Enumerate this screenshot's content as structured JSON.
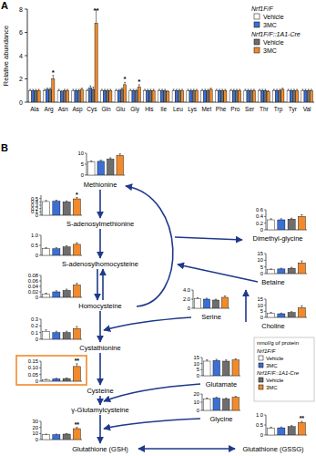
{
  "panel_labels": [
    "A",
    "B"
  ],
  "nodes": [
    {
      "label": "γ-Glutamylcysteine"
    }
  ],
  "legend_b": {
    "title": "nmol/g of protein",
    "groups": [
      {
        "label": "Nrf1F/F",
        "series": [
          0,
          1
        ]
      },
      {
        "label": "Nrf1F/F::1A1-Cre",
        "series": [
          2,
          3
        ]
      }
    ]
  },
  "chart_data": [
    {
      "type": "bar",
      "ylabel": "Relative abundance",
      "categories": [
        "Ala",
        "Arg",
        "Asn",
        "Asp",
        "Cys",
        "Gln",
        "Glu",
        "Gly",
        "His",
        "Ile",
        "Leu",
        "Lys",
        "Met",
        "Phe",
        "Pro",
        "Ser",
        "Thr",
        "Trp",
        "Tyr",
        "Val"
      ],
      "series": [
        {
          "name": "Vehicle",
          "color": "#ffffff",
          "values": [
            1,
            1,
            1,
            1,
            1,
            1,
            1,
            1,
            1,
            1,
            1,
            1,
            1,
            1,
            1,
            1,
            1,
            1,
            1,
            1
          ],
          "errors": [
            0.1,
            0.1,
            0.1,
            0.1,
            0.1,
            0.1,
            0.1,
            0.1,
            0.1,
            0.1,
            0.1,
            0.1,
            0.1,
            0.1,
            0.1,
            0.1,
            0.1,
            0.1,
            0.1,
            0.1
          ]
        },
        {
          "name": "3MC",
          "color": "#3b6fd4",
          "values": [
            1,
            1.1,
            0.9,
            1,
            1.2,
            1,
            1,
            1,
            1,
            1,
            1,
            1,
            1,
            1,
            1,
            1,
            1,
            1,
            1,
            1
          ],
          "errors": [
            0.1,
            0.1,
            0.1,
            0.1,
            0.2,
            0.1,
            0.1,
            0.1,
            0.1,
            0.1,
            0.1,
            0.1,
            0.1,
            0.1,
            0.1,
            0.1,
            0.1,
            0.1,
            0.1,
            0.1
          ]
        },
        {
          "name": "Vehicle",
          "color": "#6e6e6e",
          "values": [
            1,
            1.1,
            1,
            1,
            1.1,
            1,
            1.1,
            1,
            1,
            1,
            1,
            1,
            1,
            1,
            1,
            1,
            1,
            1,
            1,
            1
          ],
          "errors": [
            0.1,
            0.1,
            0.1,
            0.1,
            0.2,
            0.1,
            0.1,
            0.1,
            0.1,
            0.1,
            0.1,
            0.1,
            0.1,
            0.1,
            0.1,
            0.1,
            0.1,
            0.1,
            0.1,
            0.1
          ]
        },
        {
          "name": "3MC",
          "color": "#f08a2c",
          "values": [
            1,
            2,
            1,
            1.1,
            6.8,
            1,
            1.5,
            1.3,
            1,
            0.9,
            1,
            1,
            1.1,
            1,
            1,
            1,
            0.9,
            1.1,
            1,
            1
          ],
          "errors": [
            0.1,
            0.3,
            0.1,
            0.1,
            1.3,
            0.1,
            0.2,
            0.2,
            0.1,
            0.1,
            0.1,
            0.1,
            0.1,
            0.1,
            0.1,
            0.1,
            0.1,
            0.1,
            0.1,
            0.1
          ]
        }
      ],
      "ylim": [
        0,
        8
      ],
      "yticks": [
        0,
        2,
        4,
        6,
        8
      ],
      "legend": "top-right",
      "legend_groups": [
        {
          "label": "Nrf1F/F",
          "series": [
            0,
            1
          ]
        },
        {
          "label": "Nrf1F/F::1A1-Cre",
          "series": [
            2,
            3
          ]
        }
      ],
      "annotations": [
        {
          "index": 1,
          "series": 3,
          "text": "*"
        },
        {
          "index": 4,
          "series": 3,
          "text": "**"
        },
        {
          "index": 6,
          "series": 3,
          "text": "*"
        },
        {
          "index": 7,
          "series": 3,
          "text": "*"
        }
      ]
    },
    {
      "type": "bar",
      "title": "Methionine",
      "values": [
        6,
        6.3,
        7.3,
        9
      ],
      "errors": [
        0.5,
        0.5,
        0.6,
        0.7
      ],
      "colors": [
        "#ffffff",
        "#3b6fd4",
        "#6e6e6e",
        "#f08a2c"
      ],
      "ylim": [
        0,
        10
      ],
      "yticks": [
        0,
        5,
        10
      ],
      "annotations": []
    },
    {
      "type": "bar",
      "title": "S-adenosylmethionine",
      "values": [
        0.41,
        0.42,
        0.4,
        0.49
      ],
      "errors": [
        0.03,
        0.03,
        0.03,
        0.04
      ],
      "colors": [
        "#ffffff",
        "#3b6fd4",
        "#6e6e6e",
        "#f08a2c"
      ],
      "ylim": [
        0,
        0.6
      ],
      "yticks": [
        0,
        0.1,
        0.2,
        0.3,
        0.4,
        0.5
      ],
      "annotations": [
        {
          "index": 3,
          "text": "*"
        }
      ]
    },
    {
      "type": "bar",
      "title": "S-adenosylhomocysteine",
      "values": [
        0.33,
        0.33,
        0.42,
        0.55
      ],
      "errors": [
        0.05,
        0.05,
        0.06,
        0.08
      ],
      "colors": [
        "#ffffff",
        "#3b6fd4",
        "#6e6e6e",
        "#f08a2c"
      ],
      "ylim": [
        0,
        1
      ],
      "yticks": [
        0,
        0.5,
        {
          "value": 1,
          "label": "1.0"
        }
      ],
      "annotations": []
    },
    {
      "type": "bar",
      "title": "Homocysteine",
      "values": [
        0.012,
        0.02,
        0.025,
        0.045
      ],
      "errors": [
        0.003,
        0.004,
        0.005,
        0.006
      ],
      "colors": [
        "#ffffff",
        "#3b6fd4",
        "#6e6e6e",
        "#f08a2c"
      ],
      "ylim": [
        0,
        0.08
      ],
      "yticks": [
        0,
        0.02,
        0.04,
        0.06,
        0.08
      ],
      "annotations": []
    },
    {
      "type": "bar",
      "title": "Cystathionine",
      "values": [
        0.12,
        0.1,
        0.1,
        0.16
      ],
      "errors": [
        0.02,
        0.02,
        0.02,
        0.03
      ],
      "colors": [
        "#ffffff",
        "#3b6fd4",
        "#6e6e6e",
        "#f08a2c"
      ],
      "ylim": [
        0,
        0.3
      ],
      "yticks": [
        0,
        0.1,
        0.2,
        0.3
      ],
      "annotations": []
    },
    {
      "type": "bar",
      "title": "Cysteine",
      "values": [
        0.012,
        0.018,
        0.02,
        0.11
      ],
      "errors": [
        0.003,
        0.004,
        0.004,
        0.02
      ],
      "colors": [
        "#ffffff",
        "#3b6fd4",
        "#6e6e6e",
        "#f08a2c"
      ],
      "ylim": [
        0,
        0.15
      ],
      "yticks": [
        0,
        0.05,
        {
          "value": 0.1,
          "label": "0.10"
        },
        0.15
      ],
      "annotations": [
        {
          "index": 3,
          "text": "**"
        }
      ]
    },
    {
      "type": "bar",
      "title": "Glutathione (GSH)",
      "values": [
        8,
        8,
        9,
        18
      ],
      "errors": [
        1,
        1,
        1,
        2
      ],
      "colors": [
        "#ffffff",
        "#3b6fd4",
        "#6e6e6e",
        "#f08a2c"
      ],
      "ylim": [
        0,
        30
      ],
      "yticks": [
        0,
        10,
        20,
        30
      ],
      "annotations": [
        {
          "index": 3,
          "text": "**"
        }
      ]
    },
    {
      "type": "bar",
      "title": "Dimethyl-glycine",
      "values": [
        0.3,
        0.3,
        0.32,
        0.4
      ],
      "errors": [
        0.03,
        0.03,
        0.03,
        0.05
      ],
      "colors": [
        "#ffffff",
        "#3b6fd4",
        "#6e6e6e",
        "#f08a2c"
      ],
      "ylim": [
        0,
        0.6
      ],
      "yticks": [
        0,
        0.2,
        0.4,
        0.6
      ],
      "annotations": []
    },
    {
      "type": "bar",
      "title": "Betaine",
      "values": [
        3,
        3.5,
        4,
        8
      ],
      "errors": [
        0.5,
        0.5,
        0.7,
        1.5
      ],
      "colors": [
        "#ffffff",
        "#3b6fd4",
        "#6e6e6e",
        "#f08a2c"
      ],
      "ylim": [
        0,
        15
      ],
      "yticks": [
        0,
        5,
        10,
        15
      ],
      "annotations": []
    },
    {
      "type": "bar",
      "title": "Serine",
      "values": [
        2.1,
        2,
        1.8,
        2.4
      ],
      "errors": [
        0.2,
        0.2,
        0.2,
        0.3
      ],
      "colors": [
        "#ffffff",
        "#3b6fd4",
        "#6e6e6e",
        "#f08a2c"
      ],
      "ylim": [
        0,
        4
      ],
      "yticks": [
        0,
        {
          "value": 2,
          "label": "2.0"
        },
        {
          "value": 4,
          "label": "4.0"
        }
      ],
      "annotations": []
    },
    {
      "type": "bar",
      "title": "Choline",
      "values": [
        3.5,
        3,
        4,
        8
      ],
      "errors": [
        0.5,
        0.5,
        0.7,
        1.5
      ],
      "colors": [
        "#ffffff",
        "#3b6fd4",
        "#6e6e6e",
        "#f08a2c"
      ],
      "ylim": [
        0,
        15
      ],
      "yticks": [
        0,
        5,
        10,
        15
      ],
      "annotations": []
    },
    {
      "type": "bar",
      "title": "Glutamate",
      "values": [
        12,
        12.5,
        12,
        13
      ],
      "errors": [
        1,
        1,
        1,
        1
      ],
      "colors": [
        "#ffffff",
        "#3b6fd4",
        "#6e6e6e",
        "#f08a2c"
      ],
      "ylim": [
        0,
        15
      ],
      "yticks": [
        0,
        5,
        10,
        15
      ],
      "annotations": []
    },
    {
      "type": "bar",
      "title": "Glycine",
      "values": [
        14,
        15,
        14,
        16
      ],
      "errors": [
        1,
        1,
        1,
        1
      ],
      "colors": [
        "#ffffff",
        "#3b6fd4",
        "#6e6e6e",
        "#f08a2c"
      ],
      "ylim": [
        0,
        20
      ],
      "yticks": [
        0,
        10,
        20
      ],
      "annotations": []
    },
    {
      "type": "bar",
      "title": "Glutathione (GSSG)",
      "values": [
        0.35,
        0.36,
        0.42,
        0.62
      ],
      "errors": [
        0.04,
        0.04,
        0.05,
        0.06
      ],
      "colors": [
        "#ffffff",
        "#3b6fd4",
        "#6e6e6e",
        "#f08a2c"
      ],
      "ylim": [
        0,
        1
      ],
      "yticks": [
        0,
        0.5,
        {
          "value": 1,
          "label": "1.0"
        }
      ],
      "annotations": [
        {
          "index": 3,
          "text": "**"
        }
      ]
    }
  ]
}
